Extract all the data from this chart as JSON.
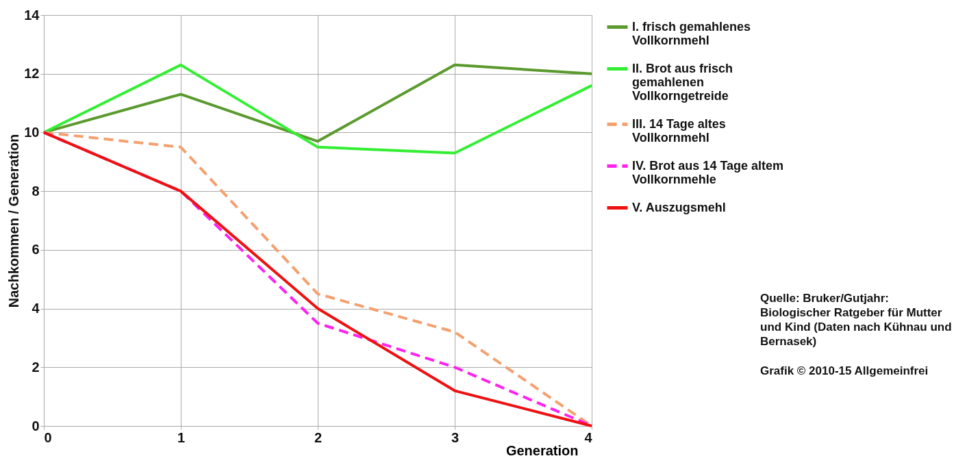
{
  "chart_data": {
    "type": "line",
    "xlabel": "Generation",
    "ylabel": "Nachkommen / Generation",
    "x": [
      0,
      1,
      2,
      3,
      4
    ],
    "series": [
      {
        "name": "I.   frisch gemahlenes Vollkornmehl",
        "color": "#5b9a2e",
        "line_style": "solid",
        "values": [
          10,
          11.3,
          9.7,
          12.3,
          12.0
        ]
      },
      {
        "name": "II.  Brot aus frisch gemahlenen Vollkorngetreide",
        "color": "#33ee33",
        "line_style": "solid",
        "values": [
          10,
          12.3,
          9.5,
          9.3,
          11.6
        ]
      },
      {
        "name": "III.  14 Tage altes Vollkornmehl",
        "color": "#f5a06e",
        "line_style": "dashed",
        "values": [
          10,
          9.5,
          4.5,
          3.2,
          0
        ]
      },
      {
        "name": "IV. Brot aus 14 Tage altem Vollkornmehle",
        "color": "#ff22ee",
        "line_style": "dashed",
        "values": [
          10,
          8,
          3.5,
          2.0,
          0
        ]
      },
      {
        "name": "V.  Auszugsmehl",
        "color": "#ee1111",
        "line_style": "solid",
        "values": [
          10,
          8,
          4,
          1.2,
          0
        ]
      }
    ],
    "xlim": [
      0,
      4
    ],
    "xticks": [
      0,
      1,
      2,
      3,
      4
    ],
    "ylim": [
      0,
      14
    ],
    "yticks": [
      0,
      2,
      4,
      6,
      8,
      10,
      12,
      14
    ],
    "grid": true,
    "legend": "right",
    "annotations": [
      "Quelle: Bruker/Gutjahr: Biologischer Ratgeber für Mutter und Kind (Daten nach Kühnau und Bernasek)",
      "Grafik © 2010-15 Allgemeinfrei"
    ]
  }
}
